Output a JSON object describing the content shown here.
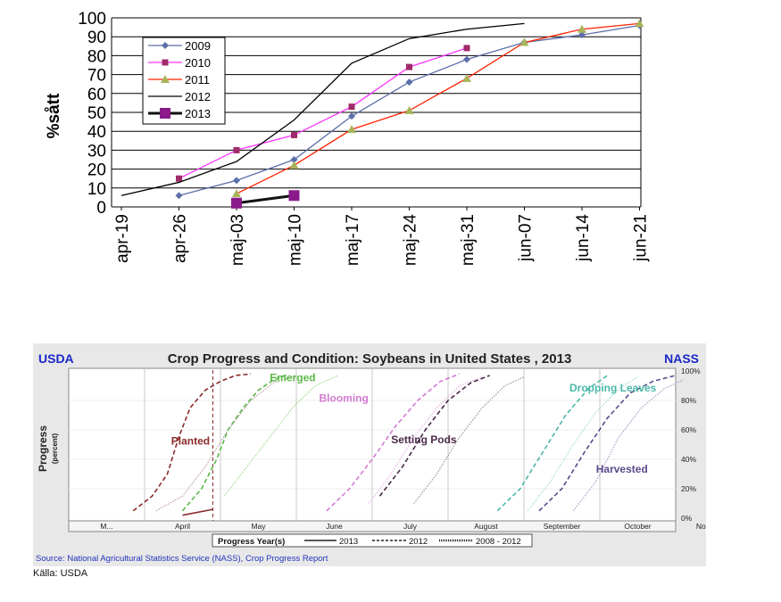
{
  "chart_data": [
    {
      "type": "line",
      "ylabel": "%sått",
      "ylim": [
        0,
        100
      ],
      "yticks": [
        0,
        10,
        20,
        30,
        40,
        50,
        60,
        70,
        80,
        90,
        100
      ],
      "categories": [
        "apr-19",
        "apr-26",
        "maj-03",
        "maj-10",
        "maj-17",
        "maj-24",
        "maj-31",
        "jun-07",
        "jun-14",
        "jun-21"
      ],
      "grid": true,
      "legend_position": "top-left",
      "series": [
        {
          "name": "2009",
          "color": "#5b6fa8",
          "marker": "diamond",
          "values": [
            null,
            6,
            14,
            25,
            48,
            66,
            78,
            87,
            91,
            96
          ]
        },
        {
          "name": "2010",
          "color": "#ff33ff",
          "marker": "square",
          "markerColor": "#a02a6a",
          "values": [
            null,
            15,
            30,
            38,
            53,
            74,
            84,
            null,
            null,
            null
          ]
        },
        {
          "name": "2011",
          "color": "#ff2200",
          "marker": "triangle",
          "markerColor": "#a8b45a",
          "values": [
            null,
            null,
            7,
            22,
            41,
            51,
            68,
            87,
            94,
            97
          ]
        },
        {
          "name": "2012",
          "color": "#000000",
          "marker": "none",
          "values": [
            6,
            13,
            24,
            46,
            76,
            89,
            94,
            97,
            null,
            null
          ]
        },
        {
          "name": "2013",
          "color": "#111111",
          "marker": "bigsquare",
          "markerColor": "#8a1a8a",
          "thick": true,
          "values": [
            null,
            null,
            2,
            6,
            null,
            null,
            null,
            null,
            null,
            null
          ]
        }
      ]
    },
    {
      "type": "line",
      "title": "Crop Progress and Condition: Soybeans in United States , 2013",
      "header_left": "USDA",
      "header_right": "NASS",
      "ylabel": "Progress",
      "ylabel_unit": "(percent)",
      "ylim": [
        0,
        100
      ],
      "yticks": [
        "0%",
        "20%",
        "40%",
        "60%",
        "80%",
        "100%"
      ],
      "months": [
        "M...",
        "April",
        "May",
        "June",
        "July",
        "August",
        "September",
        "October",
        "November"
      ],
      "legend_title": "Progress Year(s)",
      "legend": [
        "2013",
        "2012",
        "2008 - 2012"
      ],
      "annotations": [
        {
          "text": "Planted",
          "color": "#8a2a2a"
        },
        {
          "text": "Emerged",
          "color": "#5cb84a"
        },
        {
          "text": "Blooming",
          "color": "#d27ad2"
        },
        {
          "text": "Setting Pods",
          "color": "#4a2a4a"
        },
        {
          "text": "Dropping Leaves",
          "color": "#4ab8a8"
        },
        {
          "text": "Harvested",
          "color": "#5a4a8a"
        }
      ],
      "source": "Source: National Agricultural Statistics Service (NASS), Crop Progress Report",
      "series": [
        {
          "name": "Planted 2013",
          "style": "solid",
          "color": "#8a2a2a",
          "x": [
            1.5,
            1.9
          ],
          "y": [
            2,
            6
          ]
        },
        {
          "name": "Planted 2012",
          "style": "dashed",
          "color": "#8a2a2a",
          "x": [
            0.85,
            1.1,
            1.3,
            1.45,
            1.6,
            1.8,
            2.0,
            2.2,
            2.4
          ],
          "y": [
            5,
            15,
            30,
            55,
            75,
            87,
            93,
            97,
            98
          ]
        },
        {
          "name": "Planted 2008-2012",
          "style": "dotted",
          "color": "#c09a9a",
          "x": [
            1.15,
            1.5,
            1.8,
            2.1,
            2.4,
            2.7,
            3.0
          ],
          "y": [
            5,
            15,
            35,
            60,
            80,
            92,
            97
          ]
        },
        {
          "name": "Emerged 2012",
          "style": "dashed",
          "color": "#5cb84a",
          "x": [
            1.5,
            1.75,
            1.95,
            2.1,
            2.3,
            2.5,
            2.7,
            2.9
          ],
          "y": [
            5,
            20,
            40,
            60,
            75,
            87,
            94,
            98
          ]
        },
        {
          "name": "Emerged 2008-2012",
          "style": "dotted",
          "color": "#a0d890",
          "x": [
            2.05,
            2.35,
            2.65,
            2.95,
            3.25,
            3.55
          ],
          "y": [
            15,
            35,
            55,
            75,
            90,
            97
          ]
        },
        {
          "name": "Blooming 2012",
          "style": "dashed",
          "color": "#d27ad2",
          "x": [
            3.4,
            3.7,
            4.0,
            4.3,
            4.6,
            4.9,
            5.15
          ],
          "y": [
            5,
            20,
            40,
            62,
            80,
            93,
            98
          ]
        },
        {
          "name": "Blooming 2008-2012",
          "style": "dotted",
          "color": "#e8b0e8",
          "x": [
            3.95,
            4.25,
            4.55,
            4.85,
            5.15,
            5.45
          ],
          "y": [
            10,
            30,
            55,
            75,
            90,
            96
          ]
        },
        {
          "name": "Setting Pods 2012",
          "style": "dashed",
          "color": "#4a2a4a",
          "x": [
            4.1,
            4.4,
            4.7,
            5.0,
            5.3,
            5.55
          ],
          "y": [
            15,
            35,
            60,
            80,
            92,
            97
          ]
        },
        {
          "name": "Setting Pods 2008-2012",
          "style": "dotted",
          "color": "#a08aa0",
          "x": [
            4.55,
            4.85,
            5.15,
            5.45,
            5.75,
            6.0
          ],
          "y": [
            10,
            30,
            55,
            75,
            90,
            96
          ]
        },
        {
          "name": "Dropping Leaves 2012",
          "style": "dashed",
          "color": "#4ab8a8",
          "x": [
            5.65,
            5.95,
            6.25,
            6.55,
            6.85,
            7.1
          ],
          "y": [
            5,
            20,
            45,
            70,
            88,
            97
          ]
        },
        {
          "name": "Dropping Leaves 2008-2012",
          "style": "dotted",
          "color": "#a0dcd0",
          "x": [
            6.05,
            6.35,
            6.65,
            6.95,
            7.25,
            7.5
          ],
          "y": [
            5,
            25,
            50,
            72,
            88,
            96
          ]
        },
        {
          "name": "Harvested 2012",
          "style": "dashed",
          "color": "#5a4a8a",
          "x": [
            6.2,
            6.5,
            6.8,
            7.1,
            7.4,
            7.7,
            8.0
          ],
          "y": [
            5,
            20,
            45,
            68,
            85,
            93,
            97
          ]
        },
        {
          "name": "Harvested 2008-2012",
          "style": "dotted",
          "color": "#a8a0cc",
          "x": [
            6.65,
            6.95,
            7.25,
            7.55,
            7.85,
            8.1
          ],
          "y": [
            5,
            25,
            55,
            75,
            88,
            94
          ]
        }
      ],
      "current_date_marker": 1.9
    }
  ],
  "source_note": "Källa: USDA"
}
